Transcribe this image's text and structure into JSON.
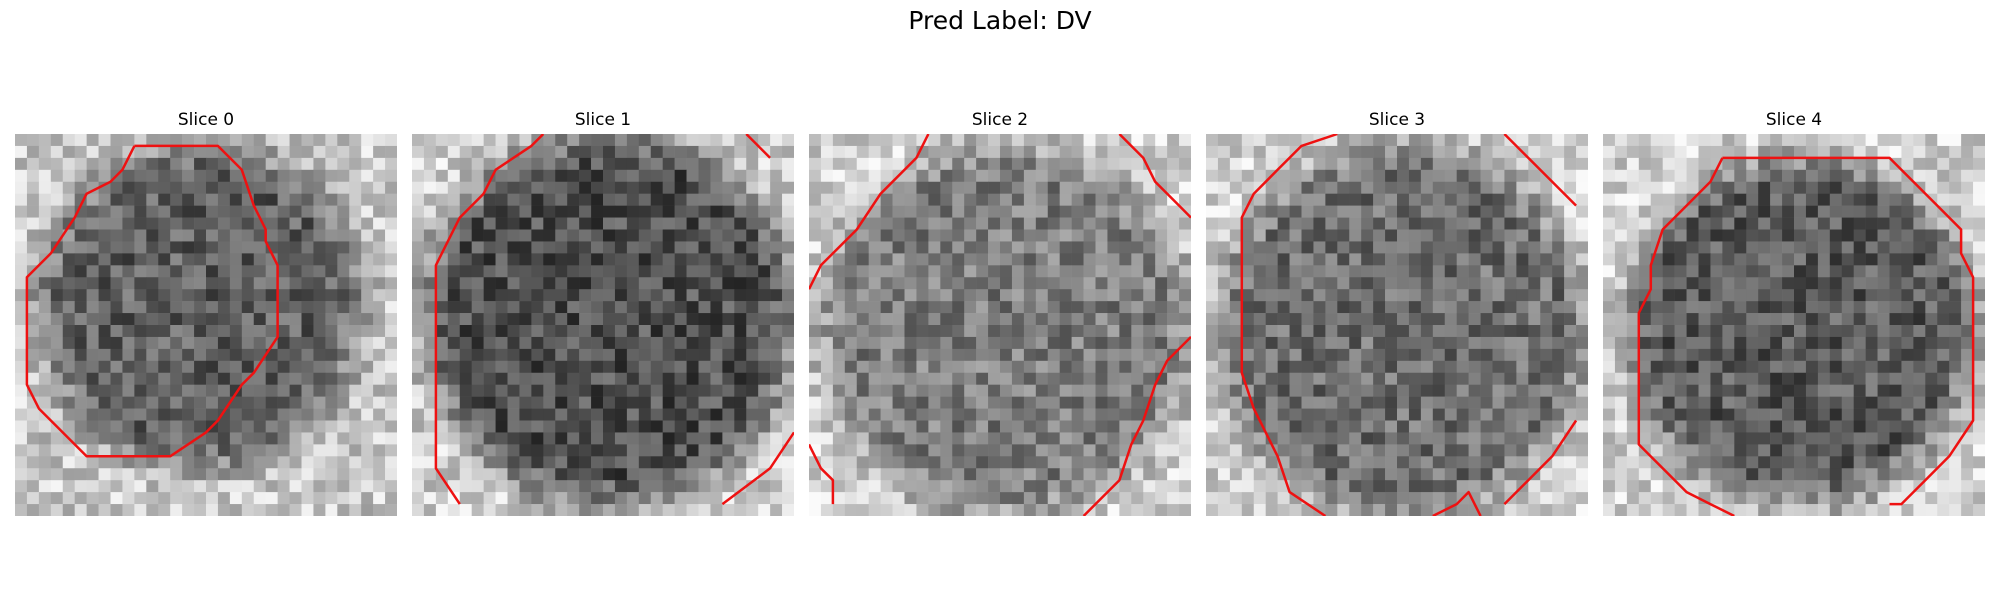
{
  "figure": {
    "title": "Pred Label: DV"
  },
  "contour_color": "#ee1111",
  "panels": [
    {
      "title": "Slice 0"
    },
    {
      "title": "Slice 1"
    },
    {
      "title": "Slice 2"
    },
    {
      "title": "Slice 3"
    },
    {
      "title": "Slice 4"
    }
  ]
}
